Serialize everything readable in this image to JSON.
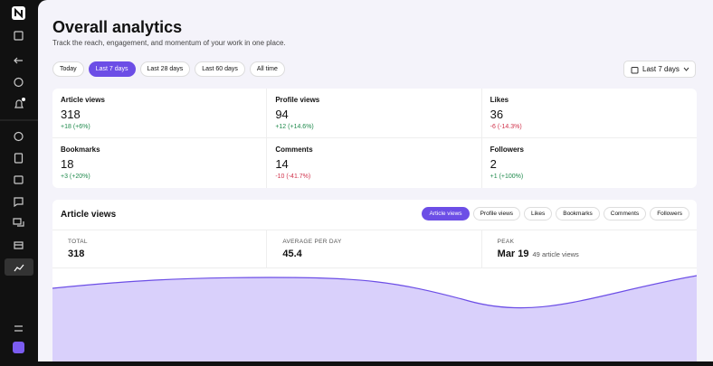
{
  "header": {
    "title": "Overall analytics",
    "subtitle": "Track the reach, engagement, and momentum of your work in one place."
  },
  "filters": [
    "Today",
    "Last 7 days",
    "Last 28 days",
    "Last 60 days",
    "All time"
  ],
  "active_filter": 1,
  "date_picker": "Last 7 days",
  "stats": [
    {
      "label": "Article views",
      "value": 318,
      "change": "+18 (+6%)",
      "trend": "up"
    },
    {
      "label": "Profile views",
      "value": 94,
      "change": "+12 (+14.6%)",
      "trend": "up"
    },
    {
      "label": "Likes",
      "value": 36,
      "change": "-6 (-14.3%)",
      "trend": "down"
    },
    {
      "label": "Bookmarks",
      "value": 18,
      "change": "+3 (+20%)",
      "trend": "up"
    },
    {
      "label": "Comments",
      "value": 14,
      "change": "-10 (-41.7%)",
      "trend": "down"
    },
    {
      "label": "Followers",
      "value": 2,
      "change": "+1 (+100%)",
      "trend": "up"
    }
  ],
  "panel": {
    "title": "Article views",
    "tabs": [
      "Article views",
      "Profile views",
      "Likes",
      "Bookmarks",
      "Comments",
      "Followers"
    ],
    "active_tab": 0,
    "summary": [
      {
        "label": "TOTAL",
        "value": 318
      },
      {
        "label": "AVERAGE PER DAY",
        "value": 45.4
      },
      {
        "label": "PEAK",
        "value": "Mar 19",
        "note": "49 article views"
      }
    ]
  }
}
